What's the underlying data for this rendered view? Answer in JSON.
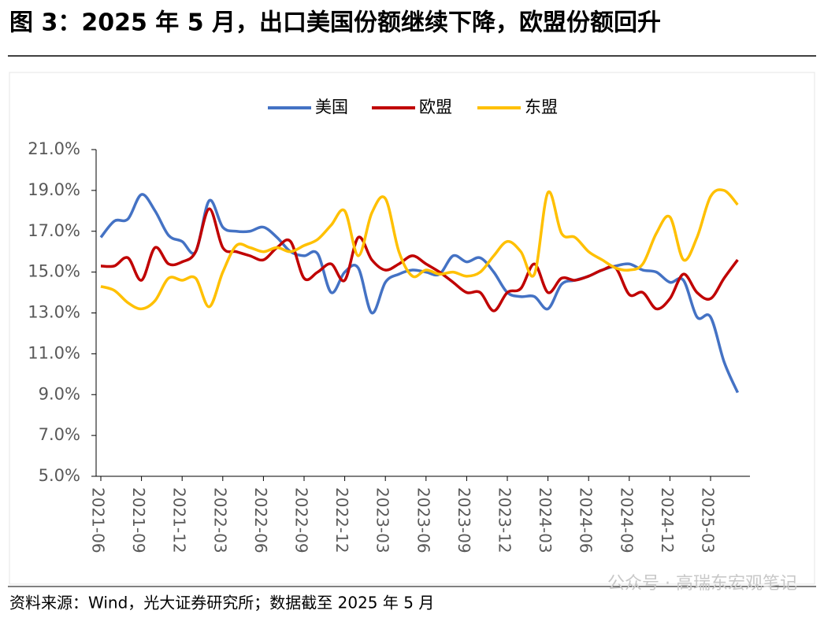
{
  "chart_data": {
    "type": "line",
    "title": "图 3：2025 年 5 月，出口美国份额继续下降，欧盟份额回升",
    "source": "资料来源：Wind，光大证券研究所；数据截至 2025 年 5 月",
    "watermark": "公众号 · 高瑞东宏观笔记",
    "categories": [
      "2021-06",
      null,
      null,
      "2021-09",
      null,
      null,
      "2021-12",
      null,
      null,
      "2022-03",
      null,
      null,
      "2022-06",
      null,
      null,
      "2022-09",
      null,
      null,
      "2022-12",
      null,
      null,
      "2023-03",
      null,
      null,
      "2023-06",
      null,
      null,
      "2023-09",
      null,
      null,
      "2023-12",
      null,
      null,
      "2024-03",
      null,
      null,
      "2024-06",
      null,
      null,
      "2024-09",
      null,
      null,
      "2024-12",
      null,
      null,
      "2025-03",
      null,
      null
    ],
    "series": [
      {
        "name": "美国",
        "color": "#4472c4",
        "values": [
          16.7,
          17.5,
          17.6,
          18.8,
          18.0,
          16.8,
          16.5,
          16.0,
          18.5,
          17.2,
          17.0,
          17.0,
          17.2,
          16.7,
          16.0,
          15.8,
          15.9,
          14.0,
          15.0,
          15.2,
          13.0,
          14.5,
          14.9,
          15.1,
          15.0,
          14.9,
          15.8,
          15.5,
          15.7,
          15.0,
          14.0,
          13.8,
          13.8,
          13.2,
          14.4,
          14.6,
          14.8,
          15.1,
          15.3,
          15.4,
          15.1,
          15.0,
          14.5,
          14.6,
          12.8,
          12.8,
          10.6,
          9.1
        ]
      },
      {
        "name": "欧盟",
        "color": "#c00000",
        "values": [
          15.3,
          15.3,
          15.7,
          14.6,
          16.2,
          15.4,
          15.5,
          16.0,
          18.1,
          16.2,
          16.0,
          15.8,
          15.6,
          16.2,
          16.5,
          14.7,
          15.0,
          15.4,
          14.6,
          16.7,
          15.6,
          15.1,
          15.4,
          15.8,
          15.4,
          15.0,
          14.5,
          14.0,
          14.0,
          13.1,
          14.0,
          14.2,
          15.4,
          14.0,
          14.7,
          14.6,
          14.8,
          15.1,
          15.2,
          13.9,
          14.0,
          13.2,
          13.7,
          14.9,
          14.0,
          13.7,
          14.7,
          15.6
        ]
      },
      {
        "name": "东盟",
        "color": "#ffc000",
        "values": [
          14.3,
          14.1,
          13.5,
          13.2,
          13.6,
          14.7,
          14.6,
          14.7,
          13.3,
          15.0,
          16.3,
          16.2,
          16.0,
          16.2,
          16.0,
          16.3,
          16.6,
          17.3,
          18.0,
          15.8,
          17.9,
          18.6,
          16.0,
          14.8,
          15.1,
          14.9,
          15.0,
          14.8,
          15.0,
          15.8,
          16.5,
          16.0,
          14.9,
          18.9,
          16.9,
          16.7,
          16.0,
          15.6,
          15.2,
          15.1,
          15.4,
          16.9,
          17.7,
          15.6,
          16.7,
          18.7,
          19.0,
          18.3
        ]
      }
    ],
    "ylim": [
      5,
      21
    ],
    "yticks": [
      {
        "value": 5,
        "label": "5.0%"
      },
      {
        "value": 7,
        "label": "7.0%"
      },
      {
        "value": 9,
        "label": "9.0%"
      },
      {
        "value": 11,
        "label": "11.0%"
      },
      {
        "value": 13,
        "label": "13.0%"
      },
      {
        "value": 15,
        "label": "15.0%"
      },
      {
        "value": 17,
        "label": "17.0%"
      },
      {
        "value": 19,
        "label": "19.0%"
      },
      {
        "value": 21,
        "label": "21.0%"
      }
    ],
    "legend": "top"
  }
}
